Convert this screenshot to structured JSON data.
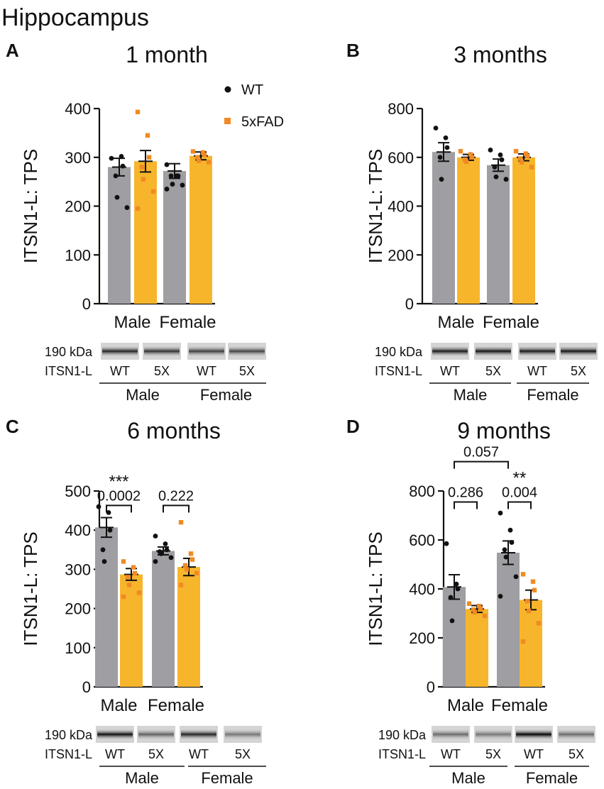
{
  "figure_title": "Hippocampus",
  "legend": [
    {
      "label": "WT",
      "color": "#9e9ea3",
      "point_color": "#111111",
      "marker": "circle"
    },
    {
      "label": "5xFAD",
      "color": "#f7b52c",
      "point_color": "#f08a24",
      "marker": "square"
    }
  ],
  "chart_data": [
    {
      "type": "bar",
      "panel": "A",
      "title": "1 month",
      "ylabel": "ITSN1-L: TPS",
      "xlabel": "",
      "categories": [
        "Male",
        "Female"
      ],
      "ylim": [
        0,
        400
      ],
      "yticks": [
        0,
        100,
        200,
        300,
        400
      ],
      "series": [
        {
          "name": "WT",
          "means": [
            280,
            272
          ],
          "sem": [
            18,
            15
          ],
          "points": [
            [
              298,
              302,
              282,
              262,
              218,
              197
            ],
            [
              285,
              262,
              262,
              262,
              245,
              243,
              235
            ]
          ]
        },
        {
          "name": "5xFAD",
          "means": [
            292,
            303
          ],
          "sem": [
            22,
            8
          ],
          "points": [
            [
              393,
              345,
              300,
              280,
              255,
              230,
              195
            ],
            [
              312,
              310,
              305,
              300,
              293,
              290
            ]
          ]
        }
      ],
      "significance": [],
      "blot": {
        "size_label": "190 kDa",
        "protein_label": "ITSN1-L",
        "lanes": [
          "WT",
          "5X",
          "WT",
          "5X"
        ],
        "groups": [
          "Male",
          "Female"
        ],
        "intensity": [
          0.85,
          0.78,
          0.72,
          0.7
        ]
      }
    },
    {
      "type": "bar",
      "panel": "B",
      "title": "3 months",
      "ylabel": "ITSN1-L: TPS",
      "xlabel": "",
      "categories": [
        "Male",
        "Female"
      ],
      "ylim": [
        0,
        800
      ],
      "yticks": [
        0,
        200,
        400,
        600,
        800
      ],
      "series": [
        {
          "name": "WT",
          "means": [
            622,
            568
          ],
          "sem": [
            38,
            25
          ],
          "points": [
            [
              720,
              680,
              640,
              600,
              510
            ],
            [
              630,
              610,
              590,
              560,
              520,
              510
            ]
          ]
        },
        {
          "name": "5xFAD",
          "means": [
            600,
            600
          ],
          "sem": [
            12,
            14
          ],
          "points": [
            [
              625,
              612,
              600,
              590,
              582
            ],
            [
              625,
              615,
              605,
              595,
              580,
              560
            ]
          ]
        }
      ],
      "significance": [],
      "blot": {
        "size_label": "190 kDa",
        "protein_label": "ITSN1-L",
        "lanes": [
          "WT",
          "5X",
          "WT",
          "5X"
        ],
        "groups": [
          "Male",
          "Female"
        ],
        "intensity": [
          0.9,
          0.92,
          0.9,
          0.92
        ]
      }
    },
    {
      "type": "bar",
      "panel": "C",
      "title": "6 months",
      "ylabel": "ITSN1-L: TPS",
      "xlabel": "",
      "categories": [
        "Male",
        "Female"
      ],
      "ylim": [
        0,
        500
      ],
      "yticks": [
        0,
        100,
        200,
        300,
        400,
        500
      ],
      "series": [
        {
          "name": "WT",
          "means": [
            407,
            347
          ],
          "sem": [
            25,
            10
          ],
          "points": [
            [
              460,
              445,
              400,
              350,
              320
            ],
            [
              385,
              365,
              350,
              345,
              340,
              330,
              320
            ]
          ]
        },
        {
          "name": "5xFAD",
          "means": [
            287,
            306
          ],
          "sem": [
            15,
            22
          ],
          "points": [
            [
              320,
              305,
              290,
              280,
              260,
              240,
              230
            ],
            [
              420,
              340,
              325,
              310,
              300,
              290,
              260
            ]
          ]
        }
      ],
      "significance": [
        {
          "group": 0,
          "label": "0.0002",
          "stars": "***",
          "y": 463
        },
        {
          "group": 1,
          "label": "0.222",
          "stars": "",
          "y": 463
        }
      ],
      "blot": {
        "size_label": "190 kDa",
        "protein_label": "ITSN1-L",
        "lanes": [
          "WT",
          "5X",
          "WT",
          "5X"
        ],
        "groups": [
          "Male",
          "Female"
        ],
        "intensity": [
          0.95,
          0.55,
          0.85,
          0.45
        ]
      }
    },
    {
      "type": "bar",
      "panel": "D",
      "title": "9 months",
      "ylabel": "ITSN1-L: TPS",
      "xlabel": "",
      "categories": [
        "Male",
        "Female"
      ],
      "ylim": [
        0,
        800
      ],
      "yticks": [
        0,
        200,
        400,
        600,
        800
      ],
      "series": [
        {
          "name": "WT",
          "means": [
            408,
            548
          ],
          "sem": [
            50,
            48
          ],
          "points": [
            [
              585,
              420,
              400,
              365,
              270
            ],
            [
              710,
              640,
              590,
              560,
              530,
              450,
              370
            ]
          ]
        },
        {
          "name": "5xFAD",
          "means": [
            318,
            355
          ],
          "sem": [
            14,
            40
          ],
          "points": [
            [
              340,
              330,
              320,
              315,
              305,
              290
            ],
            [
              460,
              430,
              395,
              350,
              310,
              260,
              185
            ]
          ]
        }
      ],
      "significance": [
        {
          "group": 0,
          "label": "0.286",
          "stars": "",
          "y": 755
        },
        {
          "group": 1,
          "label": "0.004",
          "stars": "**",
          "y": 755
        },
        {
          "between_wt": true,
          "label": "0.057",
          "stars": "",
          "y": 920
        }
      ],
      "blot": {
        "size_label": "190 kDa",
        "protein_label": "ITSN1-L",
        "lanes": [
          "WT",
          "5X",
          "WT",
          "5X"
        ],
        "groups": [
          "Male",
          "Female"
        ],
        "intensity": [
          0.5,
          0.45,
          1.0,
          0.5
        ]
      }
    }
  ]
}
